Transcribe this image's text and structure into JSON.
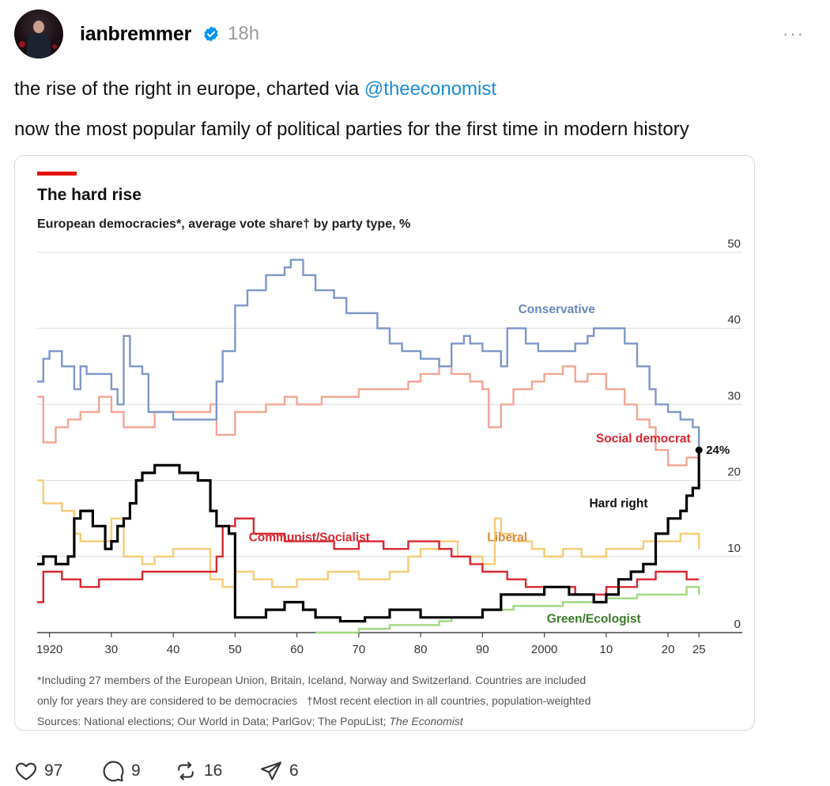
{
  "post": {
    "username": "ianbremmer",
    "time": "18h",
    "more_label": "···",
    "text_prefix": "the rise of the right in europe, charted via ",
    "mention": "@theeconomist",
    "text_line2": "now the most popular family of political parties for the first time in modern history"
  },
  "actions": {
    "likes": "97",
    "comments": "9",
    "reposts": "16",
    "shares": "6"
  },
  "colors": {
    "conservative": "#7d97c8",
    "social_democrat": "#f2a594",
    "communist": "#d9262f",
    "liberal": "#f5cc74",
    "hard_right": "#000000",
    "green": "#9fd67f",
    "accent": "#e3120b",
    "mention": "#1a8cd8"
  },
  "chart_data": {
    "type": "line",
    "title": "The hard rise",
    "subtitle": "European democracies*, average vote share† by party type, %",
    "xlabel": "",
    "ylabel": "",
    "xlim": [
      1918,
      2032
    ],
    "ylim": [
      0,
      50
    ],
    "x_ticks": [
      "1920",
      "30",
      "40",
      "50",
      "60",
      "70",
      "80",
      "90",
      "2000",
      "10",
      "20",
      "25"
    ],
    "x_tick_values": [
      1920,
      1930,
      1940,
      1950,
      1960,
      1970,
      1980,
      1990,
      2000,
      2010,
      2020,
      2025
    ],
    "y_ticks": [
      "0",
      "10",
      "20",
      "30",
      "40",
      "50"
    ],
    "y_tick_values": [
      0,
      10,
      20,
      30,
      40,
      50
    ],
    "end_label": "24%",
    "end_point": [
      2025,
      24
    ],
    "footnote1": "*Including 27 members of the European Union, Britain, Iceland, Norway and Switzerland. Countries are included",
    "footnote2": "only for years they are considered to be democracies   †Most recent election in all countries, population-weighted",
    "footnote3": "Sources: National elections; Our World in Data; ParlGov; The PopuList;",
    "footnote3_italic": "The Economist",
    "series": [
      {
        "name": "Conservative",
        "label_at": [
          2002,
          42
        ],
        "x": [
          1918,
          1919,
          1920,
          1922,
          1924,
          1925,
          1926,
          1930,
          1931,
          1932,
          1933,
          1935,
          1936,
          1940,
          1946,
          1947,
          1948,
          1950,
          1952,
          1955,
          1958,
          1959,
          1961,
          1963,
          1966,
          1968,
          1970,
          1973,
          1975,
          1977,
          1980,
          1983,
          1985,
          1987,
          1988,
          1990,
          1993,
          1994,
          1997,
          1999,
          2002,
          2005,
          2007,
          2008,
          2010,
          2013,
          2015,
          2017,
          2018,
          2020,
          2022,
          2024,
          2025
        ],
        "y": [
          33,
          36,
          37,
          35,
          32,
          35,
          34,
          32,
          30,
          39,
          35,
          34,
          29,
          28,
          28,
          33,
          37,
          43,
          45,
          47,
          48,
          49,
          47,
          45,
          44,
          42,
          42,
          40,
          38,
          37,
          36,
          35,
          38,
          39,
          38,
          37,
          35,
          40,
          38,
          37,
          37,
          38,
          39,
          40,
          40,
          38,
          35,
          32,
          30,
          29,
          28,
          27,
          24
        ]
      },
      {
        "name": "Social democrat",
        "label_at": [
          2016,
          25
        ],
        "x": [
          1918,
          1919,
          1921,
          1923,
          1925,
          1928,
          1930,
          1932,
          1935,
          1937,
          1940,
          1945,
          1946,
          1947,
          1950,
          1955,
          1958,
          1960,
          1964,
          1967,
          1970,
          1975,
          1978,
          1980,
          1983,
          1985,
          1988,
          1990,
          1991,
          1993,
          1995,
          1998,
          2000,
          2003,
          2005,
          2007,
          2010,
          2013,
          2015,
          2017,
          2018,
          2020,
          2023,
          2025
        ],
        "y": [
          31,
          25,
          27,
          28,
          29,
          31,
          29,
          27,
          27,
          29,
          29,
          29,
          30,
          26,
          29,
          30,
          31,
          30,
          31,
          31,
          32,
          32,
          33,
          34,
          35,
          34,
          33,
          32,
          27,
          30,
          32,
          33,
          34,
          35,
          33,
          34,
          32,
          30,
          28,
          27,
          24,
          22,
          23,
          24
        ]
      },
      {
        "name": "Communist/Socialist",
        "label_at": [
          1962,
          12
        ],
        "x": [
          1918,
          1919,
          1922,
          1925,
          1928,
          1930,
          1935,
          1940,
          1945,
          1947,
          1948,
          1950,
          1953,
          1955,
          1958,
          1962,
          1966,
          1970,
          1974,
          1978,
          1980,
          1983,
          1985,
          1988,
          1990,
          1994,
          1997,
          2000,
          2005,
          2010,
          2015,
          2018,
          2020,
          2023,
          2025
        ],
        "y": [
          4,
          8,
          7,
          6,
          7,
          7,
          8,
          8,
          8,
          10,
          14,
          15,
          13,
          13,
          12,
          12,
          11,
          12,
          11,
          12,
          12,
          11,
          10,
          9,
          8,
          7,
          6,
          6,
          5,
          6,
          7,
          8,
          8,
          7,
          7
        ]
      },
      {
        "name": "Liberal",
        "label_at": [
          1994,
          12
        ],
        "x": [
          1918,
          1919,
          1922,
          1924,
          1925,
          1928,
          1930,
          1932,
          1935,
          1937,
          1940,
          1945,
          1946,
          1948,
          1950,
          1953,
          1956,
          1960,
          1965,
          1970,
          1975,
          1978,
          1980,
          1983,
          1986,
          1990,
          1992,
          1993,
          1995,
          1998,
          2000,
          2003,
          2006,
          2010,
          2013,
          2016,
          2019,
          2022,
          2025
        ],
        "y": [
          20,
          17,
          16,
          13,
          12,
          12,
          15,
          10,
          9,
          10,
          11,
          11,
          7,
          6,
          8,
          7,
          6,
          7,
          8,
          7,
          8,
          10,
          11,
          12,
          10,
          9,
          15,
          13,
          12,
          11,
          10,
          11,
          10,
          11,
          11,
          12,
          12,
          13,
          11
        ]
      },
      {
        "name": "Hard right",
        "label_at": [
          2012,
          16.5
        ],
        "x": [
          1918,
          1919,
          1921,
          1923,
          1924,
          1925,
          1927,
          1929,
          1930,
          1931,
          1932,
          1933,
          1934,
          1935,
          1937,
          1939,
          1941,
          1944,
          1946,
          1947,
          1949,
          1950,
          1952,
          1953,
          1955,
          1958,
          1961,
          1963,
          1967,
          1971,
          1975,
          1980,
          1985,
          1988,
          1990,
          1993,
          1996,
          2000,
          2004,
          2008,
          2010,
          2012,
          2014,
          2016,
          2018,
          2020,
          2022,
          2023,
          2024,
          2025
        ],
        "y": [
          9,
          10,
          9,
          10,
          15,
          16,
          14,
          11,
          12,
          14,
          15,
          17,
          20,
          21,
          22,
          22,
          21,
          20,
          16,
          14,
          13,
          2,
          2,
          2,
          3,
          4,
          3,
          2,
          1.5,
          2,
          3,
          2,
          2,
          2,
          3,
          5,
          5,
          6,
          5,
          4,
          5,
          7,
          8,
          9,
          13,
          15,
          16,
          18,
          19,
          24
        ]
      },
      {
        "name": "Green/Ecologist",
        "label_at": [
          2008,
          1.3
        ],
        "x": [
          1963,
          1970,
          1975,
          1980,
          1983,
          1985,
          1988,
          1990,
          1993,
          1995,
          2000,
          2003,
          2005,
          2008,
          2010,
          2013,
          2015,
          2018,
          2020,
          2023,
          2025
        ],
        "y": [
          0,
          0.5,
          1,
          1,
          1.5,
          2,
          2,
          3,
          3,
          3.5,
          3.5,
          4,
          4,
          4,
          4.5,
          4.5,
          5,
          5,
          5,
          6,
          5
        ]
      }
    ]
  }
}
